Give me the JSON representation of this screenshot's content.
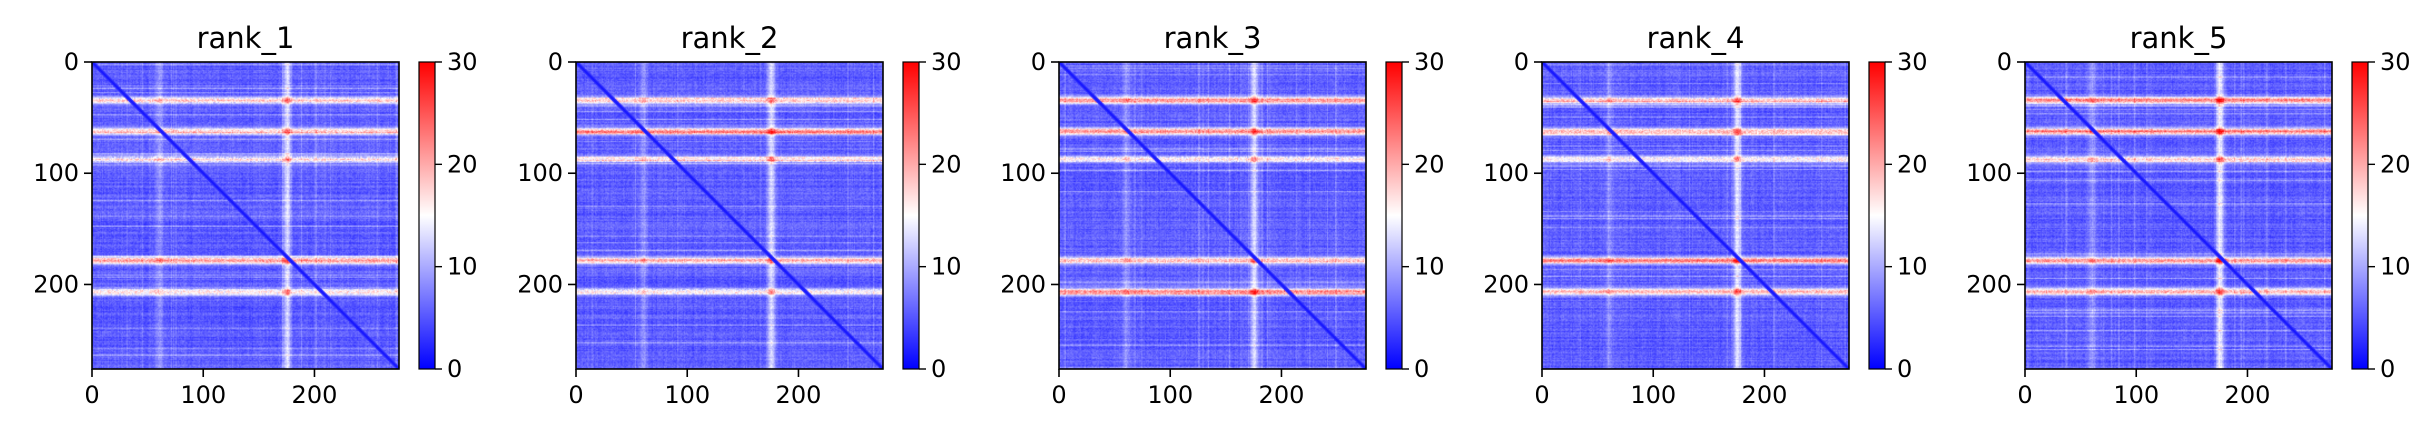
{
  "colormap": {
    "low": "#0000ff",
    "mid": "#ffffff",
    "high": "#ff0000"
  },
  "chart_data": [
    {
      "type": "heatmap",
      "title": "rank_1",
      "n": 276,
      "xlim": [
        0,
        276
      ],
      "ylim": [
        0,
        276
      ],
      "xticks": [
        "0",
        "100",
        "200"
      ],
      "yticks": [
        "0",
        "100",
        "200"
      ],
      "colorbar": {
        "range": [
          0,
          30
        ],
        "ticks": [
          "0",
          "10",
          "20",
          "30"
        ]
      },
      "row_bands": [
        {
          "pos": 34,
          "peak": 18
        },
        {
          "pos": 62,
          "peak": 18
        },
        {
          "pos": 87,
          "peak": 15
        },
        {
          "pos": 178,
          "peak": 21
        },
        {
          "pos": 206,
          "peak": 16
        }
      ],
      "col_bands": [
        {
          "pos": 175,
          "peak": 15
        },
        {
          "pos": 60,
          "peak": 10
        }
      ]
    },
    {
      "type": "heatmap",
      "title": "rank_2",
      "n": 276,
      "xlim": [
        0,
        276
      ],
      "ylim": [
        0,
        276
      ],
      "xticks": [
        "0",
        "100",
        "200"
      ],
      "yticks": [
        "0",
        "100",
        "200"
      ],
      "colorbar": {
        "range": [
          0,
          30
        ],
        "ticks": [
          "0",
          "10",
          "20",
          "30"
        ]
      },
      "row_bands": [
        {
          "pos": 34,
          "peak": 18
        },
        {
          "pos": 62,
          "peak": 20
        },
        {
          "pos": 87,
          "peak": 15
        },
        {
          "pos": 178,
          "peak": 19
        },
        {
          "pos": 206,
          "peak": 16
        }
      ],
      "col_bands": [
        {
          "pos": 175,
          "peak": 15
        },
        {
          "pos": 60,
          "peak": 10
        }
      ]
    },
    {
      "type": "heatmap",
      "title": "rank_3",
      "n": 276,
      "xlim": [
        0,
        276
      ],
      "ylim": [
        0,
        276
      ],
      "xticks": [
        "0",
        "100",
        "200"
      ],
      "yticks": [
        "0",
        "100",
        "200"
      ],
      "colorbar": {
        "range": [
          0,
          30
        ],
        "ticks": [
          "0",
          "10",
          "20",
          "30"
        ]
      },
      "row_bands": [
        {
          "pos": 34,
          "peak": 21
        },
        {
          "pos": 62,
          "peak": 22
        },
        {
          "pos": 87,
          "peak": 15
        },
        {
          "pos": 178,
          "peak": 18
        },
        {
          "pos": 206,
          "peak": 21
        }
      ],
      "col_bands": [
        {
          "pos": 175,
          "peak": 15
        },
        {
          "pos": 60,
          "peak": 10
        }
      ]
    },
    {
      "type": "heatmap",
      "title": "rank_4",
      "n": 276,
      "xlim": [
        0,
        276
      ],
      "ylim": [
        0,
        276
      ],
      "xticks": [
        "0",
        "100",
        "200"
      ],
      "yticks": [
        "0",
        "100",
        "200"
      ],
      "colorbar": {
        "range": [
          0,
          30
        ],
        "ticks": [
          "0",
          "10",
          "20",
          "30"
        ]
      },
      "row_bands": [
        {
          "pos": 34,
          "peak": 17
        },
        {
          "pos": 62,
          "peak": 19
        },
        {
          "pos": 87,
          "peak": 15
        },
        {
          "pos": 178,
          "peak": 22
        },
        {
          "pos": 206,
          "peak": 19
        }
      ],
      "col_bands": [
        {
          "pos": 175,
          "peak": 16
        },
        {
          "pos": 60,
          "peak": 10
        }
      ]
    },
    {
      "type": "heatmap",
      "title": "rank_5",
      "n": 276,
      "xlim": [
        0,
        276
      ],
      "ylim": [
        0,
        276
      ],
      "xticks": [
        "0",
        "100",
        "200"
      ],
      "yticks": [
        "0",
        "100",
        "200"
      ],
      "colorbar": {
        "range": [
          0,
          30
        ],
        "ticks": [
          "0",
          "10",
          "20",
          "30"
        ]
      },
      "row_bands": [
        {
          "pos": 34,
          "peak": 22
        },
        {
          "pos": 62,
          "peak": 21
        },
        {
          "pos": 87,
          "peak": 17
        },
        {
          "pos": 178,
          "peak": 21
        },
        {
          "pos": 206,
          "peak": 20
        }
      ],
      "col_bands": [
        {
          "pos": 175,
          "peak": 16
        },
        {
          "pos": 60,
          "peak": 10
        }
      ]
    }
  ]
}
